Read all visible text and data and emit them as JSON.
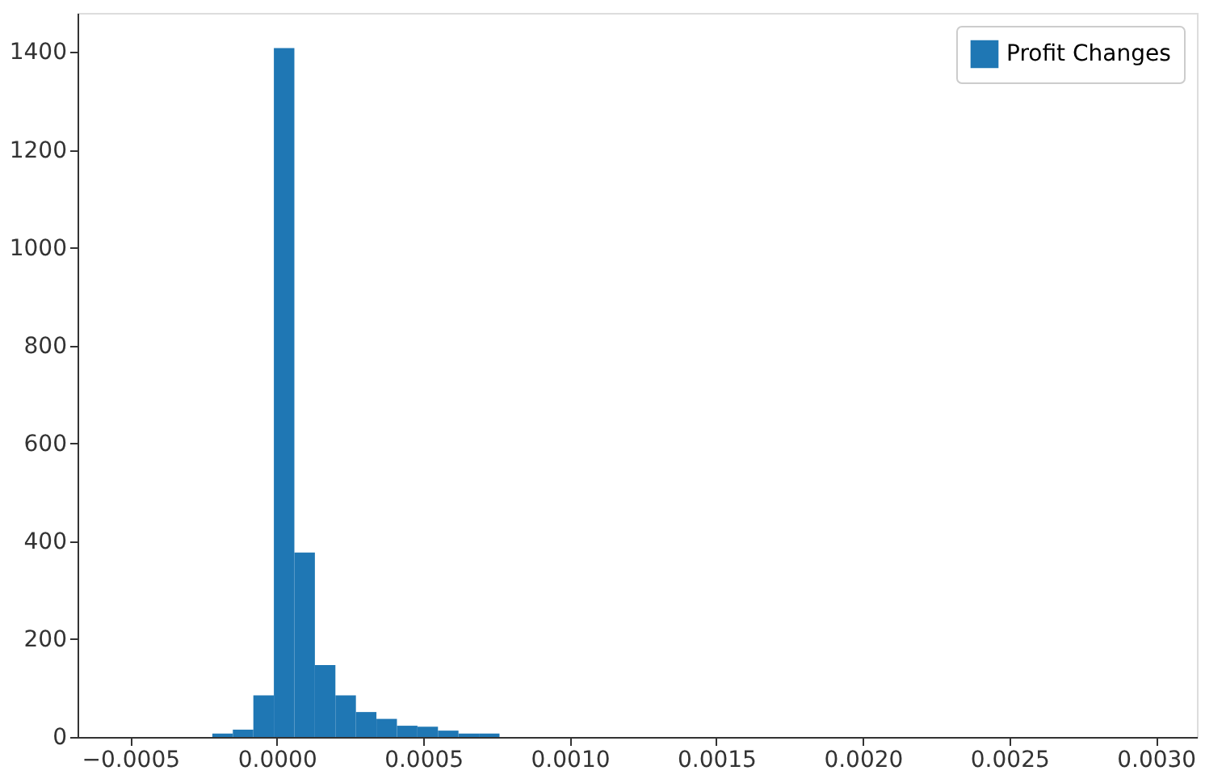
{
  "chart_data": {
    "type": "histogram",
    "bins": [
      -0.0005,
      -0.00043,
      -0.00036,
      -0.00029,
      -0.00022,
      -0.00015,
      -8e-05,
      -1e-05,
      6e-05,
      0.00013,
      0.0002,
      0.00027,
      0.00034,
      0.00041,
      0.00048,
      0.00055,
      0.00062,
      0.00069,
      0.00076,
      0.00083,
      0.0009,
      0.00097,
      0.00104,
      0.00111,
      0.00118,
      0.00125,
      0.00132,
      0.00139,
      0.00146,
      0.00153,
      0.0016,
      0.00167,
      0.00174,
      0.00181,
      0.00188,
      0.00195,
      0.00202,
      0.00209,
      0.00216,
      0.00223,
      0.0023,
      0.00237,
      0.00244,
      0.00251,
      0.00258,
      0.00265,
      0.00272,
      0.00279,
      0.00286,
      0.00293,
      0.003
    ],
    "series": [
      {
        "name": "Profit Changes",
        "color": "#1f77b4",
        "values": [
          0,
          0,
          0,
          0,
          7,
          15,
          85,
          1408,
          377,
          147,
          85,
          51,
          37,
          23,
          21,
          13,
          7,
          7,
          0,
          0,
          0,
          0,
          0,
          0,
          0,
          0,
          0,
          0,
          0,
          0,
          0,
          0,
          0,
          0,
          0,
          0,
          0,
          0,
          0,
          0,
          0,
          0,
          0,
          0,
          0,
          0,
          0,
          0,
          0,
          0
        ]
      }
    ],
    "xlim": [
      -0.00068,
      0.00314
    ],
    "xticks": [
      {
        "value": -0.0005,
        "label": "−0.0005"
      },
      {
        "value": 0,
        "label": "0.0000"
      },
      {
        "value": 0.0005,
        "label": "0.0005"
      },
      {
        "value": 0.001,
        "label": "0.0010"
      },
      {
        "value": 0.0015,
        "label": "0.0015"
      },
      {
        "value": 0.002,
        "label": "0.0020"
      },
      {
        "value": 0.0025,
        "label": "0.0025"
      },
      {
        "value": 0.003,
        "label": "0.0030"
      }
    ],
    "ylim": [
      0,
      1480
    ],
    "yticks": [
      0,
      200,
      400,
      600,
      800,
      1000,
      1200,
      1400
    ],
    "grid": false,
    "legend": "top right"
  }
}
